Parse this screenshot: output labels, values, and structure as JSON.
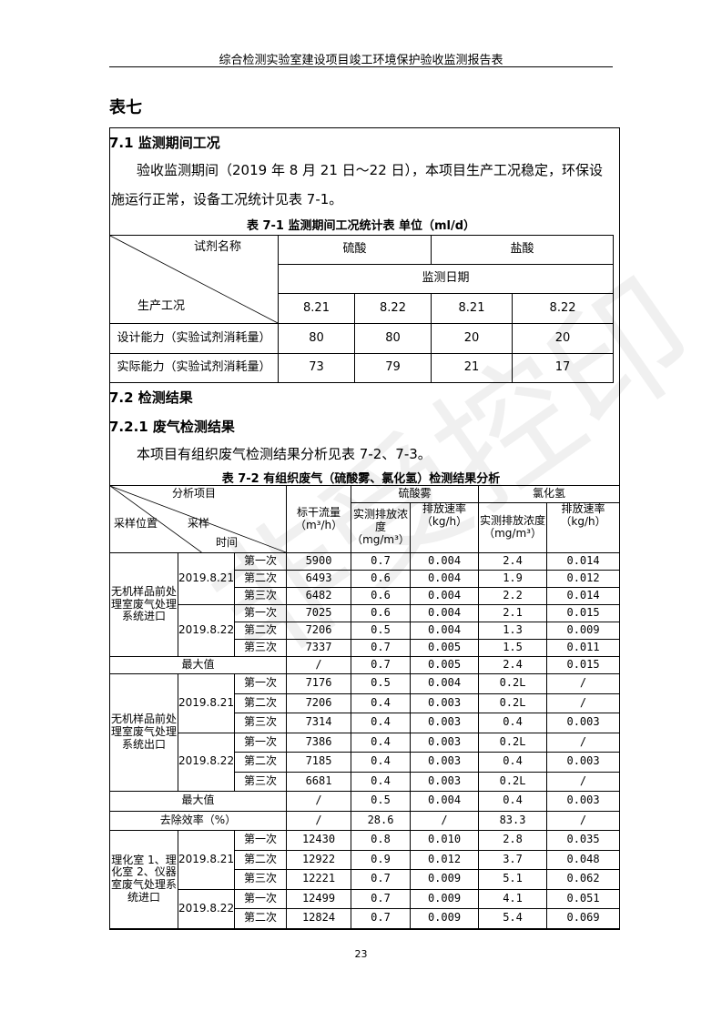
{
  "header": {
    "title": "综合检测实验室建设项目竣工环境保护验收监测报告表"
  },
  "chapter": "表七",
  "section_7_1": {
    "heading": "7.1  监测期间工况",
    "para_line1": "验收监测期间（2019 年 8 月 21 日～22 日），本项目生产工况稳定，环保设",
    "para_line2": "施运行正常，设备工况统计见表 7-1。",
    "table_caption": "表 7-1   监测期间工况统计表   单位（ml/d）",
    "table": {
      "corner_top": "试剂名称",
      "corner_bottom": "生产工况",
      "reagents": [
        "硫酸",
        "盐酸"
      ],
      "date_header": "监测日期",
      "dates": [
        "8.21",
        "8.22",
        "8.21",
        "8.22"
      ],
      "rows": [
        {
          "label": "设计能力（实验试剂消耗量）",
          "values": [
            "80",
            "80",
            "20",
            "20"
          ]
        },
        {
          "label": "实际能力（实验试剂消耗量）",
          "values": [
            "73",
            "79",
            "21",
            "17"
          ]
        }
      ]
    }
  },
  "section_7_2": {
    "heading": "7.2  检测结果",
    "sub_heading": "7.2.1 废气检测结果",
    "para": "本项目有组织废气检测结果分析见表 7-2、7-3。",
    "table_caption": "表 7-2  有组织废气（硫酸雾、氯化氢）检测结果分析",
    "table": {
      "corner_item": "分析项目",
      "corner_location": "采样位置",
      "corner_sample": "采样",
      "corner_time": "时间",
      "flow_header": "标干流量（m³/h）",
      "h2so4": "硫酸雾",
      "hcl": "氯化氢",
      "conc_h2so4": "实测排放浓度（mg/m³）",
      "rate_h2so4": "排放速率（kg/h）",
      "conc_hcl": "实测排放浓度（mg/m³）",
      "rate_hcl": "排放速率（kg/h）",
      "groups": [
        {
          "location": "无机样品前处理室废气处理系统进口",
          "dates": [
            {
              "date": "2019.8.21",
              "runs": [
                [
                  "第一次",
                  "5900",
                  "0.7",
                  "0.004",
                  "2.4",
                  "0.014"
                ],
                [
                  "第二次",
                  "6493",
                  "0.6",
                  "0.004",
                  "1.9",
                  "0.012"
                ],
                [
                  "第三次",
                  "6482",
                  "0.6",
                  "0.004",
                  "2.2",
                  "0.014"
                ]
              ]
            },
            {
              "date": "2019.8.22",
              "runs": [
                [
                  "第一次",
                  "7025",
                  "0.6",
                  "0.004",
                  "2.1",
                  "0.015"
                ],
                [
                  "第二次",
                  "7206",
                  "0.5",
                  "0.004",
                  "1.3",
                  "0.009"
                ],
                [
                  "第三次",
                  "7337",
                  "0.7",
                  "0.005",
                  "1.5",
                  "0.011"
                ]
              ]
            }
          ],
          "summary": [
            [
              "最大值",
              "/",
              "0.7",
              "0.005",
              "2.4",
              "0.015"
            ]
          ]
        },
        {
          "location": "无机样品前处理室废气处理系统出口",
          "dates": [
            {
              "date": "2019.8.21",
              "runs": [
                [
                  "第一次",
                  "7176",
                  "0.5",
                  "0.004",
                  "0.2L",
                  "/"
                ],
                [
                  "第二次",
                  "7206",
                  "0.4",
                  "0.003",
                  "0.2L",
                  "/"
                ],
                [
                  "第三次",
                  "7314",
                  "0.4",
                  "0.003",
                  "0.4",
                  "0.003"
                ]
              ]
            },
            {
              "date": "2019.8.22",
              "runs": [
                [
                  "第一次",
                  "7386",
                  "0.4",
                  "0.003",
                  "0.2L",
                  "/"
                ],
                [
                  "第二次",
                  "7185",
                  "0.4",
                  "0.003",
                  "0.4",
                  "0.003"
                ],
                [
                  "第三次",
                  "6681",
                  "0.4",
                  "0.003",
                  "0.2L",
                  "/"
                ]
              ]
            }
          ],
          "summary": [
            [
              "最大值",
              "/",
              "0.5",
              "0.004",
              "0.4",
              "0.003"
            ],
            [
              "去除效率（%）",
              "/",
              "28.6",
              "/",
              "83.3",
              "/"
            ]
          ]
        },
        {
          "location": "理化室 1、理化室 2、仪器室废气处理系统进口",
          "dates": [
            {
              "date": "2019.8.21",
              "runs": [
                [
                  "第一次",
                  "12430",
                  "0.8",
                  "0.010",
                  "2.8",
                  "0.035"
                ],
                [
                  "第二次",
                  "12922",
                  "0.9",
                  "0.012",
                  "3.7",
                  "0.048"
                ],
                [
                  "第三次",
                  "12221",
                  "0.7",
                  "0.009",
                  "5.1",
                  "0.062"
                ]
              ]
            },
            {
              "date": "2019.8.22",
              "runs": [
                [
                  "第一次",
                  "12499",
                  "0.7",
                  "0.009",
                  "4.1",
                  "0.051"
                ],
                [
                  "第二次",
                  "12824",
                  "0.7",
                  "0.009",
                  "5.4",
                  "0.069"
                ]
              ]
            }
          ],
          "summary": []
        }
      ]
    }
  },
  "watermark": "非受控印",
  "page_number": "23"
}
